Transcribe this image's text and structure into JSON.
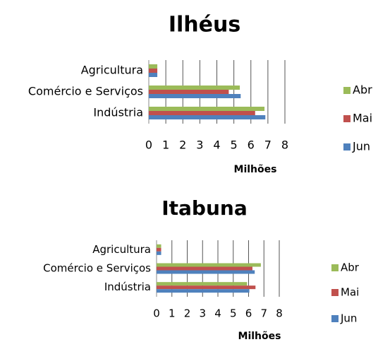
{
  "chart_data": [
    {
      "type": "bar",
      "orientation": "horizontal",
      "title": "Ilhéus",
      "xlabel": "Milhões",
      "categories": [
        "Agricultura",
        "Comércio e Serviços",
        "Indústria"
      ],
      "series": [
        {
          "name": "Abr",
          "color": "#9bbb59",
          "values": [
            0.5,
            5.35,
            6.8
          ]
        },
        {
          "name": "Mai",
          "color": "#c0504d",
          "values": [
            0.5,
            4.7,
            6.25
          ]
        },
        {
          "name": "Jun",
          "color": "#4f81bd",
          "values": [
            0.5,
            5.4,
            6.85
          ]
        }
      ],
      "xlim": [
        0,
        8
      ],
      "xticks": [
        0,
        1,
        2,
        3,
        4,
        5,
        6,
        7,
        8
      ],
      "grid": true,
      "legend": "right"
    },
    {
      "type": "bar",
      "orientation": "horizontal",
      "title": "Itabuna",
      "xlabel": "Milhões",
      "categories": [
        "Agricultura",
        "Comércio e Serviços",
        "Indústria"
      ],
      "series": [
        {
          "name": "Abr",
          "color": "#9bbb59",
          "values": [
            0.3,
            6.8,
            5.9
          ]
        },
        {
          "name": "Mai",
          "color": "#c0504d",
          "values": [
            0.3,
            6.25,
            6.45
          ]
        },
        {
          "name": "Jun",
          "color": "#4f81bd",
          "values": [
            0.3,
            6.4,
            6.05
          ]
        }
      ],
      "xlim": [
        0,
        8
      ],
      "xticks": [
        0,
        1,
        2,
        3,
        4,
        5,
        6,
        7,
        8
      ],
      "grid": true,
      "legend": "right"
    }
  ]
}
